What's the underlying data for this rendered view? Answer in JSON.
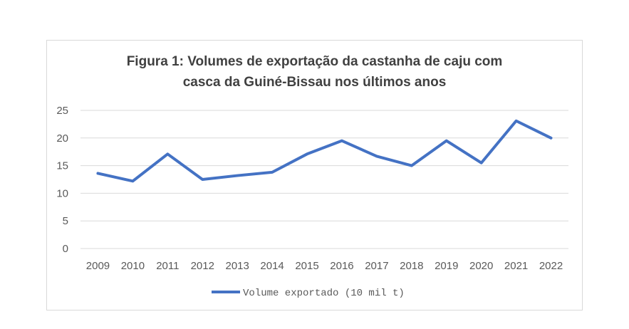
{
  "chart_data": {
    "type": "line",
    "title_lines": [
      "Figura 1: Volumes de exportação da castanha de caju com",
      "casca da Guiné-Bissau nos últimos anos"
    ],
    "categories": [
      "2009",
      "2010",
      "2011",
      "2012",
      "2013",
      "2014",
      "2015",
      "2016",
      "2017",
      "2018",
      "2019",
      "2020",
      "2021",
      "2022"
    ],
    "series": [
      {
        "name": "Volume exportado (10 mil t)",
        "values": [
          13.6,
          12.2,
          17.1,
          12.5,
          13.2,
          13.8,
          17.1,
          19.5,
          16.7,
          15.0,
          19.5,
          15.5,
          23.1,
          20.0
        ]
      }
    ],
    "yticks": [
      "0",
      "5",
      "10",
      "15",
      "20",
      "25"
    ],
    "ylim": [
      0,
      25
    ],
    "grid": true,
    "legend_position": "bottom",
    "color": "#4472c4"
  }
}
